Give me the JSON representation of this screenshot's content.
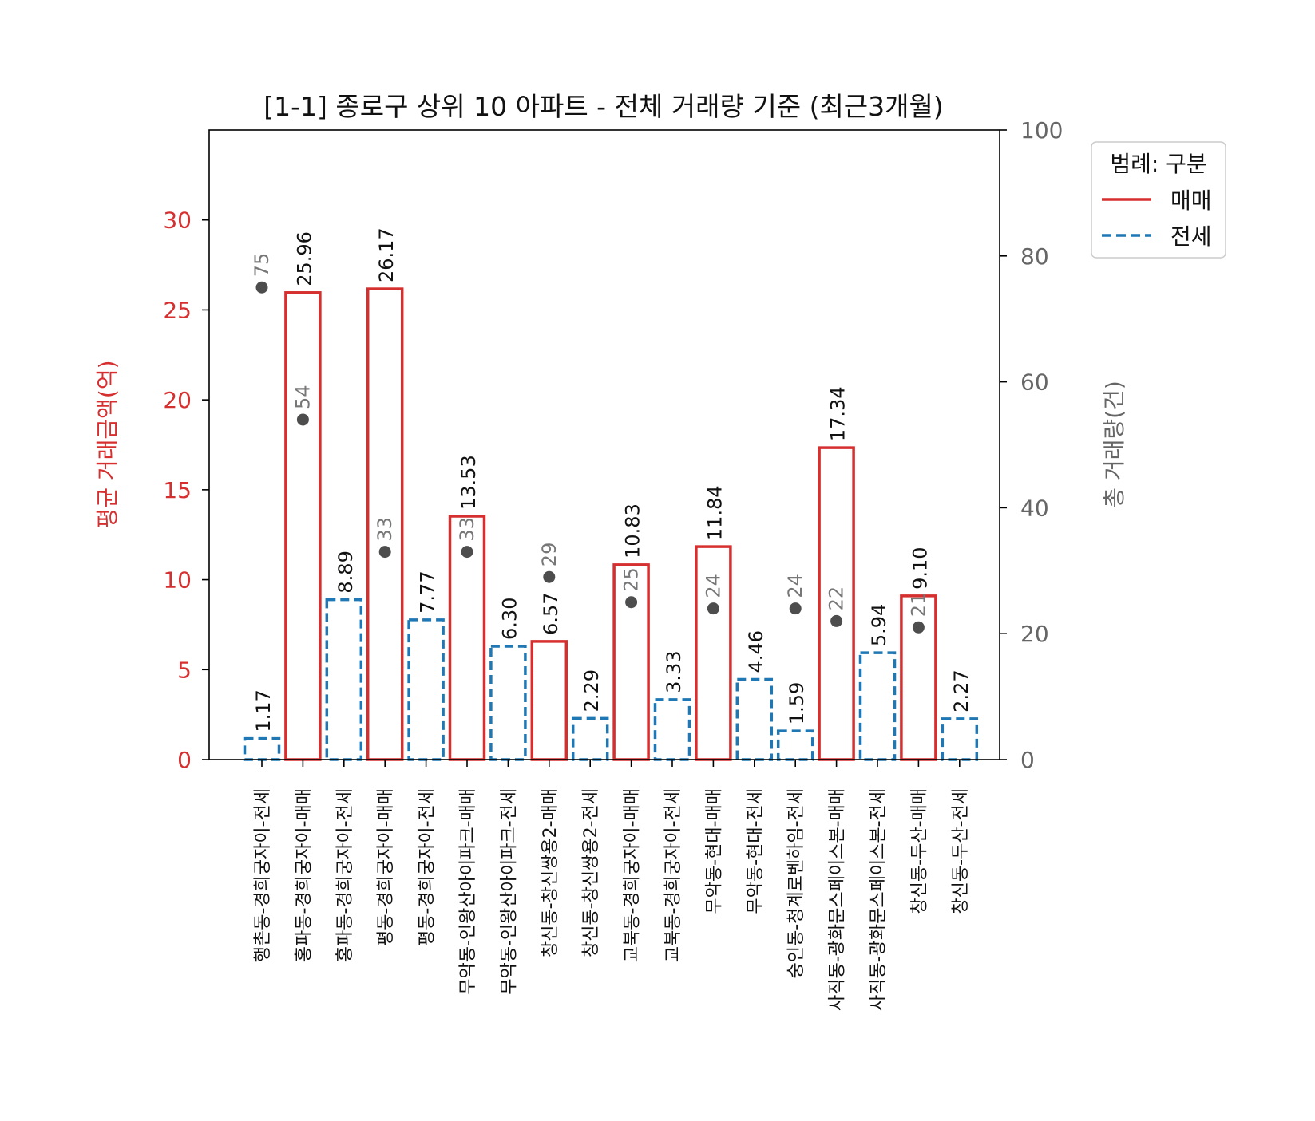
{
  "chart_data": {
    "type": "bar",
    "title": "[1-1] 종로구 상위 10 아파트 - 전체 거래량 기준 (최근3개월)",
    "xlabel": "",
    "ylabel": "평균 거래금액(억)",
    "y2label": "총 거래량(건)",
    "ylim": [
      0,
      35
    ],
    "y2lim": [
      0,
      100
    ],
    "yticks": [
      "0",
      "5",
      "10",
      "15",
      "20",
      "25",
      "30"
    ],
    "y2ticks": [
      "0",
      "20",
      "40",
      "60",
      "80",
      "100"
    ],
    "legend": {
      "title": "범례: 구분",
      "placement": "outside-top-right",
      "entries": [
        {
          "label": "매매",
          "color": "#d62f2f",
          "style": "solid"
        },
        {
          "label": "전세",
          "color": "#1f77b4",
          "style": "dashed"
        }
      ]
    },
    "categories": [
      "행촌동-경희궁자이-전세",
      "홍파동-경희궁자이-매매",
      "홍파동-경희궁자이-전세",
      "평동-경희궁자이-매매",
      "평동-경희궁자이-전세",
      "무악동-인왕산아이파크-매매",
      "무악동-인왕산아이파크-전세",
      "창신동-창신쌍용2-매매",
      "창신동-창신쌍용2-전세",
      "교북동-경희궁자이-매매",
      "교북동-경희궁자이-전세",
      "무악동-현대-매매",
      "무악동-현대-전세",
      "숭인동-청계로벤하임-전세",
      "사직동-광화문스페이스본-매매",
      "사직동-광화문스페이스본-전세",
      "창신동-두산-매매",
      "창신동-두산-전세"
    ],
    "bar_types": [
      "전세",
      "매매",
      "전세",
      "매매",
      "전세",
      "매매",
      "전세",
      "매매",
      "전세",
      "매매",
      "전세",
      "매매",
      "전세",
      "전세",
      "매매",
      "전세",
      "매매",
      "전세"
    ],
    "series": [
      {
        "name": "평균 거래금액(억)",
        "axis": "left",
        "values": [
          1.17,
          25.96,
          8.89,
          26.17,
          7.77,
          13.53,
          6.3,
          6.57,
          2.29,
          10.83,
          3.33,
          11.84,
          4.46,
          1.59,
          17.34,
          5.94,
          9.1,
          2.27
        ],
        "labels": [
          "1.17",
          "25.96",
          "8.89",
          "26.17",
          "7.77",
          "13.53",
          "6.30",
          "6.57",
          "2.29",
          "10.83",
          "3.33",
          "11.84",
          "4.46",
          "1.59",
          "17.34",
          "5.94",
          "9.10",
          "2.27"
        ]
      },
      {
        "name": "총 거래량(건)",
        "axis": "right",
        "type": "scatter",
        "values": [
          75,
          54,
          null,
          33,
          null,
          33,
          null,
          29,
          null,
          25,
          null,
          24,
          null,
          24,
          22,
          null,
          21,
          null
        ],
        "labels": [
          "75",
          "54",
          "",
          "33",
          "",
          "33",
          "",
          "29",
          "",
          "25",
          "",
          "24",
          "",
          "24",
          "22",
          "",
          "21",
          ""
        ]
      }
    ],
    "colors": {
      "sale": "#d62f2f",
      "jeonse": "#1f77b4",
      "volume_dot": "#4d4d4d",
      "left_axis": "#d62f2f",
      "right_axis": "#666666"
    },
    "grid": false
  }
}
